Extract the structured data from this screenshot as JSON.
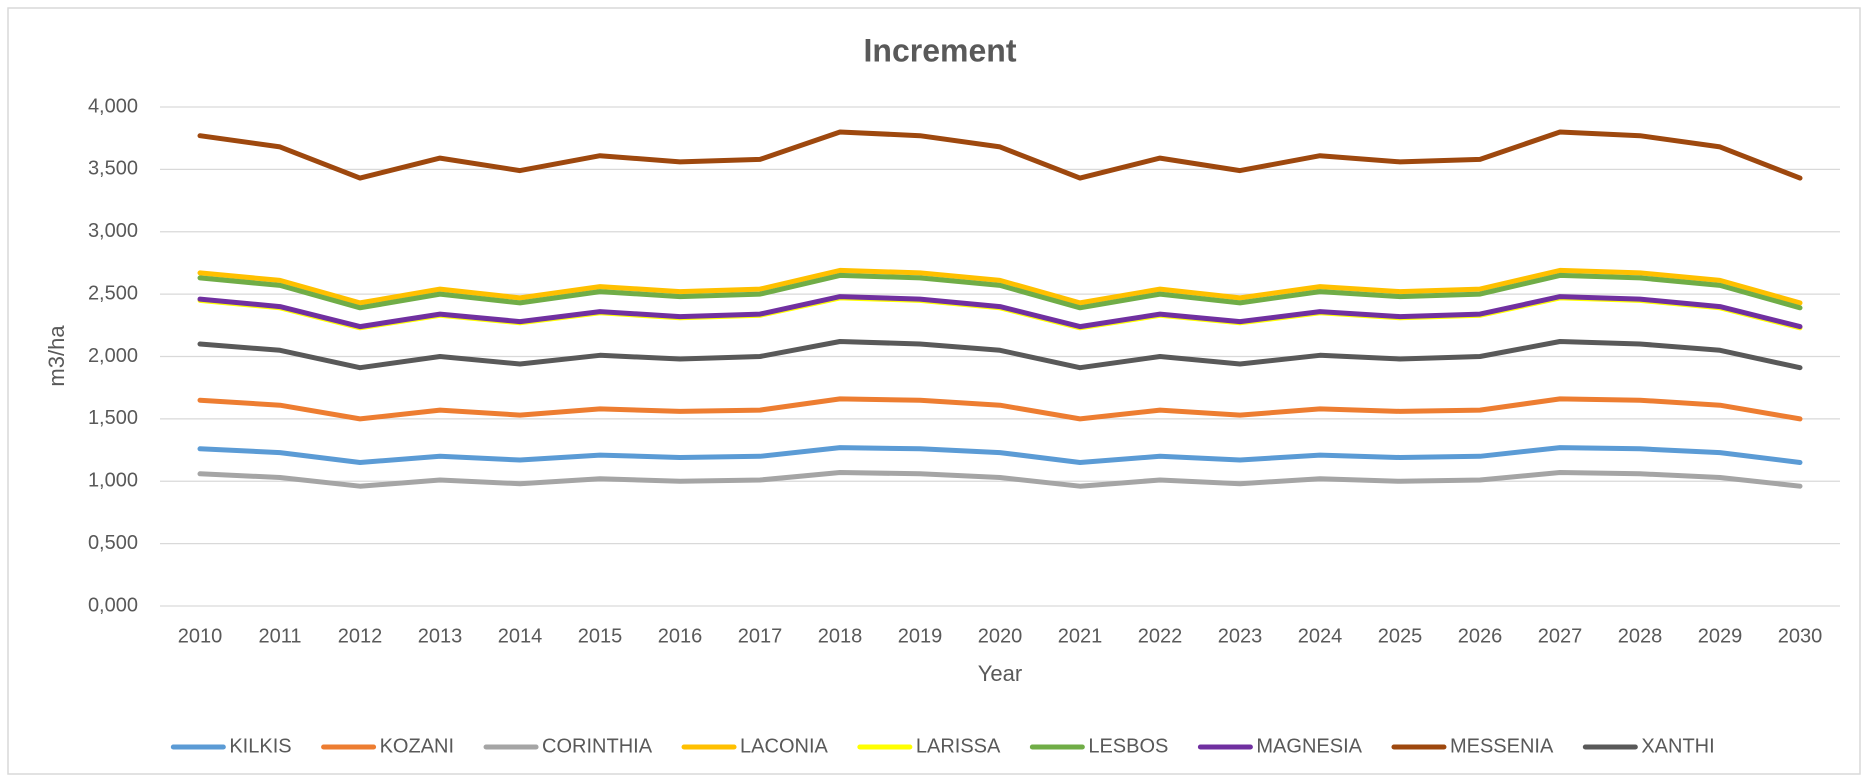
{
  "chart_data": {
    "type": "line",
    "title": "Increment",
    "x_label": "Year",
    "y_label": "m3/ha",
    "categories": [
      "2010",
      "2011",
      "2012",
      "2013",
      "2014",
      "2015",
      "2016",
      "2017",
      "2018",
      "2019",
      "2020",
      "2021",
      "2022",
      "2023",
      "2024",
      "2025",
      "2026",
      "2027",
      "2028",
      "2029",
      "2030"
    ],
    "ylim": [
      0,
      4
    ],
    "yticks": [
      {
        "value": 0,
        "label": "0,000"
      },
      {
        "value": 0.5,
        "label": "0,500"
      },
      {
        "value": 1,
        "label": "1,000"
      },
      {
        "value": 1.5,
        "label": "1,500"
      },
      {
        "value": 2,
        "label": "2,000"
      },
      {
        "value": 2.5,
        "label": "2,500"
      },
      {
        "value": 3,
        "label": "3,000"
      },
      {
        "value": 3.5,
        "label": "3,500"
      },
      {
        "value": 4,
        "label": "4,000"
      }
    ],
    "grid": true,
    "legend": "bottom",
    "series": [
      {
        "name": "KILKIS",
        "color": "#5b9bd5",
        "values": [
          1.26,
          1.23,
          1.15,
          1.2,
          1.17,
          1.21,
          1.19,
          1.2,
          1.27,
          1.26,
          1.23,
          1.15,
          1.2,
          1.17,
          1.21,
          1.19,
          1.2,
          1.27,
          1.26,
          1.23,
          1.15
        ]
      },
      {
        "name": "KOZANI",
        "color": "#ed7d31",
        "values": [
          1.65,
          1.61,
          1.5,
          1.57,
          1.53,
          1.58,
          1.56,
          1.57,
          1.66,
          1.65,
          1.61,
          1.5,
          1.57,
          1.53,
          1.58,
          1.56,
          1.57,
          1.66,
          1.65,
          1.61,
          1.5
        ]
      },
      {
        "name": "CORINTHIA",
        "color": "#a5a5a5",
        "values": [
          1.06,
          1.03,
          0.96,
          1.01,
          0.98,
          1.02,
          1.0,
          1.01,
          1.07,
          1.06,
          1.03,
          0.96,
          1.01,
          0.98,
          1.02,
          1.0,
          1.01,
          1.07,
          1.06,
          1.03,
          0.96
        ]
      },
      {
        "name": "LACONIA",
        "color": "#ffc000",
        "values": [
          2.67,
          2.61,
          2.43,
          2.54,
          2.47,
          2.56,
          2.52,
          2.54,
          2.69,
          2.67,
          2.61,
          2.43,
          2.54,
          2.47,
          2.56,
          2.52,
          2.54,
          2.69,
          2.67,
          2.61,
          2.43
        ]
      },
      {
        "name": "LARISSA",
        "color": "#ffff00",
        "values": [
          2.45,
          2.39,
          2.23,
          2.33,
          2.27,
          2.35,
          2.31,
          2.33,
          2.47,
          2.45,
          2.39,
          2.23,
          2.33,
          2.27,
          2.35,
          2.31,
          2.33,
          2.47,
          2.45,
          2.39,
          2.23
        ]
      },
      {
        "name": "LESBOS",
        "color": "#70ad47",
        "values": [
          2.63,
          2.57,
          2.39,
          2.5,
          2.43,
          2.52,
          2.48,
          2.5,
          2.65,
          2.63,
          2.57,
          2.39,
          2.5,
          2.43,
          2.52,
          2.48,
          2.5,
          2.65,
          2.63,
          2.57,
          2.39
        ]
      },
      {
        "name": "MAGNESIA",
        "color": "#7030a0",
        "values": [
          2.46,
          2.4,
          2.24,
          2.34,
          2.28,
          2.36,
          2.32,
          2.34,
          2.48,
          2.46,
          2.4,
          2.24,
          2.34,
          2.28,
          2.36,
          2.32,
          2.34,
          2.48,
          2.46,
          2.4,
          2.24
        ]
      },
      {
        "name": "MESSENIA",
        "color": "#9e480e",
        "values": [
          3.77,
          3.68,
          3.43,
          3.59,
          3.49,
          3.61,
          3.56,
          3.58,
          3.8,
          3.77,
          3.68,
          3.43,
          3.59,
          3.49,
          3.61,
          3.56,
          3.58,
          3.8,
          3.77,
          3.68,
          3.43
        ]
      },
      {
        "name": "XANTHI",
        "color": "#595959",
        "values": [
          2.1,
          2.05,
          1.91,
          2.0,
          1.94,
          2.01,
          1.98,
          2.0,
          2.12,
          2.1,
          2.05,
          1.91,
          2.0,
          1.94,
          2.01,
          1.98,
          2.0,
          2.12,
          2.1,
          2.05,
          1.91
        ]
      }
    ]
  }
}
